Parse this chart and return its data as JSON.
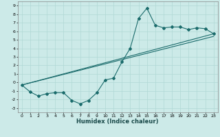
{
  "xlabel": "Humidex (Indice chaleur)",
  "ylabel": "",
  "bg_color": "#cceae8",
  "line_color": "#1a6b6b",
  "xlim": [
    -0.5,
    23.5
  ],
  "ylim": [
    -3.5,
    9.5
  ],
  "xticks": [
    0,
    1,
    2,
    3,
    4,
    5,
    6,
    7,
    8,
    9,
    10,
    11,
    12,
    13,
    14,
    15,
    16,
    17,
    18,
    19,
    20,
    21,
    22,
    23
  ],
  "yticks": [
    -3,
    -2,
    -1,
    0,
    1,
    2,
    3,
    4,
    5,
    6,
    7,
    8,
    9
  ],
  "line1_x": [
    0,
    1,
    2,
    3,
    4,
    5,
    6,
    7,
    8,
    9,
    10,
    11,
    12,
    13,
    14,
    15,
    16,
    17,
    18,
    19,
    20,
    21,
    22,
    23
  ],
  "line1_y": [
    -0.3,
    -1.1,
    -1.6,
    -1.3,
    -1.2,
    -1.2,
    -2.1,
    -2.5,
    -2.1,
    -1.2,
    0.3,
    0.5,
    2.4,
    4.0,
    7.5,
    8.7,
    6.7,
    6.4,
    6.5,
    6.5,
    6.2,
    6.4,
    6.3,
    5.7
  ],
  "line2_x": [
    0,
    23
  ],
  "line2_y": [
    -0.3,
    5.7
  ],
  "line3_x": [
    0,
    23
  ],
  "line3_y": [
    -0.3,
    5.4
  ],
  "grid_color": "#b0d8d5",
  "xlabel_fontsize": 6.0,
  "tick_fontsize": 4.5,
  "marker_size": 2.0,
  "linewidth": 0.8
}
